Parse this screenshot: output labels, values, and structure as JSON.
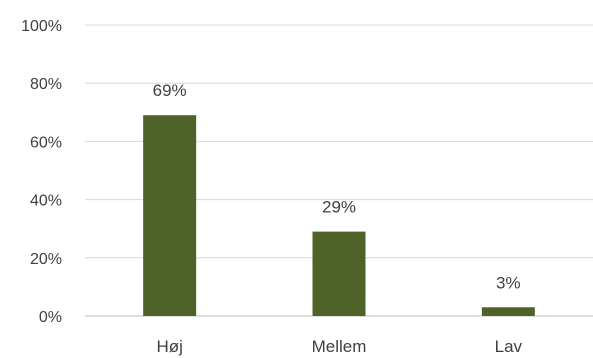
{
  "chart_data": {
    "type": "bar",
    "categories": [
      "Høj",
      "Mellem",
      "Lav"
    ],
    "values": [
      69,
      29,
      3
    ],
    "data_labels": [
      "69%",
      "29%",
      "3%"
    ],
    "title": "",
    "xlabel": "",
    "ylabel": "",
    "ylim": [
      0,
      100
    ],
    "y_ticks": [
      0,
      20,
      40,
      60,
      80,
      100
    ],
    "y_tick_labels": [
      "0%",
      "20%",
      "40%",
      "60%",
      "80%",
      "100%"
    ],
    "grid": true,
    "legend": "none",
    "bar_color": "#4f6228"
  }
}
